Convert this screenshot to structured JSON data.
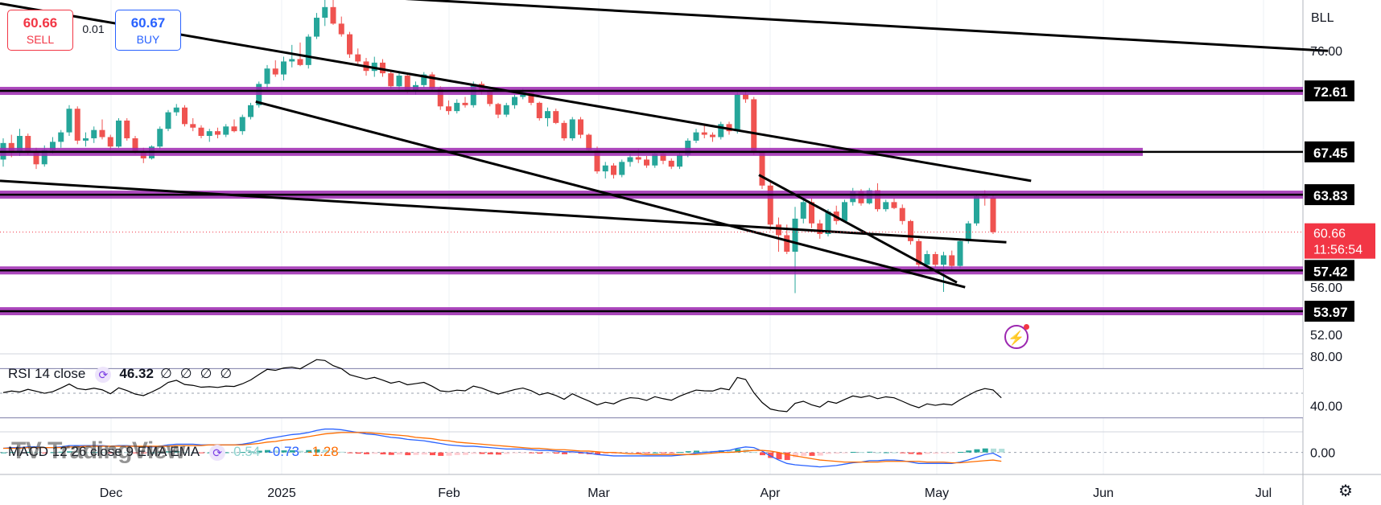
{
  "trade": {
    "sell_price": "60.66",
    "sell_label": "SELL",
    "spread": "0.01",
    "buy_price": "60.67",
    "buy_label": "BUY"
  },
  "symbol": "BLL",
  "colors": {
    "up": "#26a69a",
    "down": "#ef5350",
    "level_line": "#9c27b0",
    "trend_line": "#000000",
    "rsi_line": "#000000",
    "macd_line": "#2962ff",
    "signal_line": "#ff6d00",
    "current_price_bg": "#f23645"
  },
  "chart_data": [
    {
      "type": "candlestick",
      "panel": "price",
      "x_labels": [
        "Dec",
        "2025",
        "Feb",
        "Mar",
        "Apr",
        "May",
        "Jun",
        "Jul"
      ],
      "y_ticks": [
        "76.00",
        "56.00",
        "52.00"
      ],
      "ylim": [
        50.5,
        80.3
      ],
      "horizontal_levels": [
        {
          "value": 72.61,
          "label": "72.61"
        },
        {
          "value": 67.45,
          "label": "67.45"
        },
        {
          "value": 63.83,
          "label": "63.83"
        },
        {
          "value": 57.42,
          "label": "57.42"
        },
        {
          "value": 53.97,
          "label": "53.97"
        }
      ],
      "current_price": {
        "value": 60.66,
        "label": "60.66",
        "countdown": "11:56:54"
      },
      "candles": [
        [
          66.8,
          68.6,
          66.2,
          68.2
        ],
        [
          68.2,
          68.9,
          67.0,
          67.5
        ],
        [
          67.5,
          69.4,
          67.1,
          68.8
        ],
        [
          68.8,
          69.0,
          67.2,
          67.4
        ],
        [
          67.4,
          67.8,
          66.0,
          66.4
        ],
        [
          66.4,
          68.0,
          66.2,
          67.6
        ],
        [
          67.6,
          68.7,
          67.3,
          68.3
        ],
        [
          68.3,
          69.3,
          67.8,
          69.1
        ],
        [
          69.1,
          71.4,
          68.8,
          71.1
        ],
        [
          71.1,
          71.3,
          68.1,
          68.4
        ],
        [
          68.4,
          69.1,
          67.9,
          68.6
        ],
        [
          68.6,
          69.6,
          68.2,
          69.3
        ],
        [
          69.3,
          70.2,
          68.5,
          68.7
        ],
        [
          68.7,
          68.9,
          67.6,
          67.9
        ],
        [
          67.9,
          70.3,
          67.8,
          70.1
        ],
        [
          70.1,
          70.3,
          68.4,
          68.6
        ],
        [
          68.6,
          68.8,
          67.3,
          67.5
        ],
        [
          67.5,
          67.8,
          66.5,
          66.9
        ],
        [
          66.9,
          68.0,
          66.8,
          67.9
        ],
        [
          67.9,
          69.6,
          67.7,
          69.4
        ],
        [
          69.4,
          71.0,
          69.2,
          70.8
        ],
        [
          70.8,
          71.5,
          70.5,
          71.2
        ],
        [
          71.2,
          71.4,
          69.6,
          69.8
        ],
        [
          69.8,
          70.3,
          69.2,
          69.5
        ],
        [
          69.5,
          69.7,
          68.6,
          68.8
        ],
        [
          68.8,
          69.4,
          68.3,
          69.2
        ],
        [
          69.2,
          69.5,
          68.6,
          68.9
        ],
        [
          68.9,
          69.8,
          68.7,
          69.6
        ],
        [
          69.6,
          70.2,
          69.1,
          69.2
        ],
        [
          69.2,
          70.6,
          68.9,
          70.4
        ],
        [
          70.4,
          71.6,
          70.2,
          71.4
        ],
        [
          71.4,
          73.4,
          71.2,
          73.2
        ],
        [
          73.2,
          74.8,
          72.8,
          74.5
        ],
        [
          74.5,
          75.2,
          73.8,
          74.0
        ],
        [
          74.0,
          75.5,
          73.5,
          75.1
        ],
        [
          75.1,
          76.5,
          74.6,
          75.3
        ],
        [
          75.3,
          76.7,
          74.7,
          74.8
        ],
        [
          74.8,
          77.4,
          74.5,
          77.2
        ],
        [
          77.2,
          79.2,
          77.0,
          78.8
        ],
        [
          78.8,
          80.5,
          78.1,
          79.7
        ],
        [
          79.7,
          80.3,
          78.2,
          78.3
        ],
        [
          78.3,
          78.9,
          77.2,
          77.4
        ],
        [
          77.4,
          77.6,
          75.4,
          75.7
        ],
        [
          75.7,
          76.2,
          74.9,
          75.1
        ],
        [
          75.1,
          75.4,
          73.9,
          74.3
        ],
        [
          74.3,
          75.5,
          73.8,
          75.0
        ],
        [
          75.0,
          75.3,
          73.8,
          74.1
        ],
        [
          74.1,
          74.4,
          72.8,
          73.0
        ],
        [
          73.0,
          74.3,
          72.5,
          73.9
        ],
        [
          73.9,
          74.1,
          72.4,
          72.6
        ],
        [
          72.6,
          73.4,
          72.3,
          73.1
        ],
        [
          73.1,
          74.2,
          72.9,
          74.0
        ],
        [
          74.0,
          74.2,
          72.6,
          72.8
        ],
        [
          72.8,
          73.0,
          71.0,
          71.3
        ],
        [
          71.3,
          71.8,
          70.6,
          70.9
        ],
        [
          70.9,
          71.9,
          70.7,
          71.6
        ],
        [
          71.6,
          72.1,
          71.2,
          71.4
        ],
        [
          71.4,
          73.4,
          71.2,
          73.2
        ],
        [
          73.2,
          73.4,
          72.3,
          72.6
        ],
        [
          72.6,
          72.8,
          71.3,
          71.5
        ],
        [
          71.5,
          71.6,
          70.3,
          70.6
        ],
        [
          70.6,
          71.6,
          70.4,
          71.4
        ],
        [
          71.4,
          72.3,
          71.1,
          72.1
        ],
        [
          72.1,
          72.8,
          71.9,
          72.5
        ],
        [
          72.5,
          72.7,
          71.4,
          71.6
        ],
        [
          71.6,
          71.7,
          70.1,
          70.3
        ],
        [
          70.3,
          71.2,
          69.6,
          70.9
        ],
        [
          70.9,
          71.1,
          69.8,
          69.9
        ],
        [
          69.9,
          70.1,
          68.4,
          68.6
        ],
        [
          68.6,
          70.4,
          68.4,
          70.2
        ],
        [
          70.2,
          70.4,
          68.6,
          68.9
        ],
        [
          68.9,
          69.0,
          67.4,
          67.6
        ],
        [
          67.6,
          67.9,
          65.6,
          65.8
        ],
        [
          65.8,
          66.6,
          65.2,
          66.3
        ],
        [
          66.3,
          66.5,
          65.2,
          65.5
        ],
        [
          65.5,
          66.8,
          65.3,
          66.6
        ],
        [
          66.6,
          67.3,
          66.2,
          67.0
        ],
        [
          67.0,
          67.7,
          66.5,
          66.8
        ],
        [
          66.8,
          67.1,
          66.1,
          66.3
        ],
        [
          66.3,
          67.5,
          66.1,
          67.3
        ],
        [
          67.3,
          67.5,
          66.4,
          66.7
        ],
        [
          66.7,
          66.9,
          66.0,
          66.2
        ],
        [
          66.2,
          67.4,
          66.0,
          67.2
        ],
        [
          67.2,
          68.6,
          67.0,
          68.4
        ],
        [
          68.4,
          69.4,
          68.2,
          69.1
        ],
        [
          69.1,
          69.7,
          68.6,
          68.9
        ],
        [
          68.9,
          69.1,
          68.3,
          68.7
        ],
        [
          68.7,
          70.0,
          68.5,
          69.8
        ],
        [
          69.8,
          70.0,
          68.9,
          69.2
        ],
        [
          69.2,
          72.5,
          69.0,
          72.3
        ],
        [
          72.3,
          72.7,
          71.6,
          71.9
        ],
        [
          71.9,
          72.1,
          67.2,
          67.4
        ],
        [
          67.4,
          67.5,
          64.3,
          64.6
        ],
        [
          64.6,
          64.9,
          60.8,
          61.3
        ],
        [
          61.3,
          61.9,
          59.0,
          60.4
        ],
        [
          60.4,
          61.3,
          58.8,
          59.0
        ],
        [
          59.0,
          62.8,
          55.5,
          61.8
        ],
        [
          61.8,
          63.6,
          61.4,
          63.2
        ],
        [
          63.2,
          63.5,
          61.0,
          61.4
        ],
        [
          61.4,
          61.7,
          60.1,
          60.5
        ],
        [
          60.5,
          62.6,
          60.3,
          62.4
        ],
        [
          62.4,
          62.9,
          61.3,
          61.6
        ],
        [
          61.6,
          63.4,
          61.5,
          63.2
        ],
        [
          63.2,
          64.4,
          62.9,
          64.1
        ],
        [
          64.1,
          64.3,
          62.9,
          63.1
        ],
        [
          63.1,
          64.4,
          63.0,
          64.2
        ],
        [
          64.2,
          64.8,
          62.4,
          62.6
        ],
        [
          62.6,
          63.4,
          62.4,
          63.2
        ],
        [
          63.2,
          63.5,
          62.6,
          62.7
        ],
        [
          62.7,
          63.0,
          61.3,
          61.6
        ],
        [
          61.6,
          61.7,
          59.6,
          59.9
        ],
        [
          59.9,
          60.1,
          57.6,
          57.9
        ],
        [
          57.9,
          59.1,
          57.4,
          58.8
        ],
        [
          58.8,
          59.0,
          57.7,
          57.9
        ],
        [
          57.9,
          59.0,
          55.6,
          58.7
        ],
        [
          58.7,
          59.1,
          57.5,
          57.8
        ],
        [
          57.8,
          60.1,
          57.6,
          59.9
        ],
        [
          59.9,
          61.6,
          59.7,
          61.4
        ],
        [
          61.4,
          63.9,
          61.2,
          63.7
        ],
        [
          63.7,
          64.2,
          62.9,
          63.6
        ],
        [
          63.6,
          63.8,
          60.5,
          60.66
        ]
      ],
      "trend_lines": "5 straight trend lines"
    },
    {
      "type": "line",
      "panel": "rsi",
      "title": "RSI 14 close",
      "value_label": "46.32",
      "extra_labels": [
        "∅",
        "∅",
        "∅",
        "∅"
      ],
      "y_ticks": [
        "80.00",
        "40.00"
      ],
      "ylim": [
        20,
        82
      ],
      "bands": [
        70,
        30
      ],
      "values": [
        50.5,
        51.8,
        51.0,
        53.2,
        51.6,
        50.0,
        51.3,
        54.2,
        57.5,
        53.8,
        52.9,
        54.1,
        52.8,
        49.6,
        54.4,
        52.2,
        49.3,
        48.1,
        51.0,
        54.3,
        58.8,
        60.5,
        57.1,
        56.4,
        54.9,
        55.3,
        54.7,
        55.8,
        55.5,
        57.7,
        60.8,
        65.2,
        69.4,
        68.6,
        70.5,
        71.2,
        69.8,
        73.6,
        77.3,
        76.6,
        72.4,
        70.0,
        65.1,
        63.2,
        61.5,
        62.9,
        60.7,
        58.2,
        59.6,
        56.9,
        57.8,
        58.8,
        55.7,
        51.9,
        51.3,
        52.5,
        52.0,
        55.8,
        54.2,
        51.6,
        49.3,
        51.1,
        53.0,
        54.2,
        52.1,
        48.7,
        50.4,
        48.2,
        45.1,
        49.6,
        46.5,
        43.7,
        40.5,
        42.7,
        41.4,
        44.6,
        46.4,
        45.9,
        44.2,
        47.2,
        45.6,
        44.3,
        47.6,
        50.2,
        52.6,
        52.0,
        51.8,
        54.0,
        52.8,
        62.8,
        61.2,
        50.4,
        42.5,
        37.2,
        35.8,
        35.1,
        41.8,
        43.5,
        40.6,
        38.8,
        43.4,
        41.9,
        44.9,
        47.8,
        46.6,
        48.0,
        45.6,
        47.1,
        46.3,
        43.5,
        40.5,
        38.3,
        41.4,
        40.2,
        41.3,
        40.5,
        44.7,
        48.3,
        51.8,
        53.8,
        52.7,
        46.32
      ]
    },
    {
      "type": "bar_line",
      "panel": "macd",
      "title": "MACD 12 26 close 9 EMA EMA",
      "values_labels": [
        "0.54",
        "-0.73",
        "-1.28"
      ],
      "y_ticks": [
        "0.00"
      ],
      "ylim": [
        -3.2,
        3.0
      ],
      "histogram": [
        0.0,
        0.05,
        0.02,
        0.08,
        0.05,
        -0.02,
        0.03,
        0.1,
        0.16,
        0.05,
        0.03,
        0.06,
        0.04,
        -0.05,
        0.1,
        0.04,
        -0.05,
        -0.08,
        0.0,
        0.08,
        0.16,
        0.18,
        0.06,
        0.03,
        -0.01,
        0.0,
        -0.01,
        0.02,
        0.01,
        0.06,
        0.13,
        0.25,
        0.35,
        0.28,
        0.3,
        0.32,
        0.24,
        0.34,
        0.44,
        0.38,
        0.2,
        0.1,
        -0.1,
        -0.18,
        -0.26,
        -0.2,
        -0.28,
        -0.36,
        -0.3,
        -0.4,
        -0.36,
        -0.3,
        -0.4,
        -0.5,
        -0.48,
        -0.38,
        -0.36,
        -0.2,
        -0.22,
        -0.28,
        -0.32,
        -0.22,
        -0.1,
        -0.04,
        -0.08,
        -0.18,
        -0.1,
        -0.16,
        -0.26,
        -0.12,
        -0.18,
        -0.26,
        -0.34,
        -0.26,
        -0.24,
        -0.14,
        -0.06,
        -0.06,
        -0.1,
        0.0,
        -0.02,
        -0.06,
        0.06,
        0.18,
        0.26,
        0.24,
        0.22,
        0.3,
        0.26,
        0.5,
        0.44,
        0.06,
        -0.4,
        -0.8,
        -1.0,
        -1.1,
        -0.7,
        -0.5,
        -0.5,
        -0.46,
        -0.2,
        -0.16,
        -0.02,
        0.08,
        0.06,
        0.1,
        0.0,
        0.02,
        0.0,
        -0.1,
        -0.22,
        -0.32,
        -0.2,
        -0.18,
        -0.14,
        -0.12,
        0.08,
        0.28,
        0.46,
        0.58,
        0.56,
        0.54
      ],
      "macd_line": [
        0.6,
        0.7,
        0.7,
        0.8,
        0.8,
        0.7,
        0.7,
        0.8,
        1.0,
        1.0,
        1.0,
        1.0,
        1.0,
        0.9,
        1.0,
        1.0,
        0.9,
        0.8,
        0.8,
        0.9,
        1.1,
        1.2,
        1.2,
        1.2,
        1.1,
        1.1,
        1.1,
        1.1,
        1.1,
        1.2,
        1.4,
        1.7,
        2.0,
        2.2,
        2.4,
        2.6,
        2.7,
        2.9,
        3.2,
        3.4,
        3.4,
        3.3,
        3.1,
        2.9,
        2.7,
        2.6,
        2.4,
        2.2,
        2.1,
        1.9,
        1.8,
        1.7,
        1.5,
        1.3,
        1.1,
        1.0,
        0.9,
        0.9,
        0.8,
        0.7,
        0.6,
        0.5,
        0.5,
        0.5,
        0.4,
        0.3,
        0.3,
        0.2,
        0.1,
        0.1,
        0.0,
        -0.1,
        -0.3,
        -0.4,
        -0.5,
        -0.5,
        -0.5,
        -0.5,
        -0.5,
        -0.5,
        -0.5,
        -0.5,
        -0.4,
        -0.3,
        -0.1,
        0.0,
        0.1,
        0.2,
        0.3,
        0.6,
        0.8,
        0.7,
        0.2,
        -0.5,
        -1.1,
        -1.6,
        -1.8,
        -1.9,
        -2.0,
        -2.1,
        -2.0,
        -1.9,
        -1.7,
        -1.5,
        -1.4,
        -1.2,
        -1.2,
        -1.1,
        -1.1,
        -1.2,
        -1.4,
        -1.6,
        -1.6,
        -1.6,
        -1.6,
        -1.6,
        -1.4,
        -1.1,
        -0.7,
        -0.3,
        -0.1,
        -0.73
      ],
      "signal_line": [
        0.6,
        0.6,
        0.6,
        0.7,
        0.7,
        0.7,
        0.7,
        0.7,
        0.8,
        0.8,
        0.9,
        0.9,
        0.9,
        0.9,
        0.9,
        0.9,
        0.9,
        0.9,
        0.9,
        0.9,
        0.9,
        1.0,
        1.0,
        1.0,
        1.0,
        1.1,
        1.1,
        1.1,
        1.1,
        1.1,
        1.2,
        1.3,
        1.5,
        1.6,
        1.8,
        1.9,
        2.1,
        2.3,
        2.5,
        2.7,
        2.8,
        2.9,
        2.9,
        2.9,
        2.9,
        2.8,
        2.7,
        2.6,
        2.5,
        2.4,
        2.2,
        2.1,
        2.0,
        1.8,
        1.7,
        1.5,
        1.4,
        1.3,
        1.2,
        1.1,
        1.0,
        0.9,
        0.8,
        0.7,
        0.6,
        0.6,
        0.5,
        0.4,
        0.4,
        0.3,
        0.2,
        0.2,
        0.1,
        0.0,
        0.0,
        -0.1,
        -0.2,
        -0.2,
        -0.3,
        -0.3,
        -0.3,
        -0.3,
        -0.3,
        -0.3,
        -0.3,
        -0.2,
        -0.1,
        0.0,
        0.0,
        0.1,
        0.2,
        0.3,
        0.3,
        0.2,
        0.0,
        -0.3,
        -0.5,
        -0.7,
        -0.9,
        -1.1,
        -1.2,
        -1.3,
        -1.4,
        -1.4,
        -1.4,
        -1.4,
        -1.4,
        -1.3,
        -1.3,
        -1.3,
        -1.3,
        -1.3,
        -1.4,
        -1.4,
        -1.4,
        -1.5,
        -1.5,
        -1.4,
        -1.3,
        -1.2,
        -1.1,
        -1.28
      ]
    }
  ]
}
